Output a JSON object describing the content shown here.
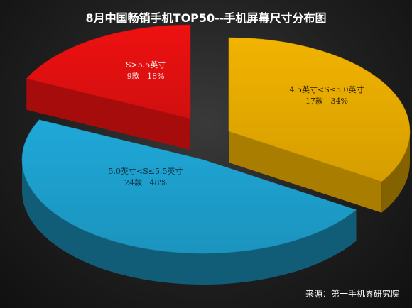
{
  "chart_data": {
    "type": "pie",
    "title": "8月中国畅销手机TOP50--手机屏幕尺寸分布图",
    "categories": [
      "4.5英寸<S≤5.0英寸",
      "5.0英寸<S≤5.5英寸",
      "S>5.5英寸"
    ],
    "series": [
      {
        "values": [
          17,
          24,
          9
        ],
        "percent_labels": [
          "34%",
          "48%",
          "18%"
        ],
        "count_labels": [
          "17款",
          "24款",
          "9款"
        ]
      }
    ],
    "colors": [
      "#f2b300",
      "#1fa8d8",
      "#ee1111"
    ],
    "legend": "none",
    "style": "3d-exploded"
  },
  "source": "来源：第一手机界研究院"
}
